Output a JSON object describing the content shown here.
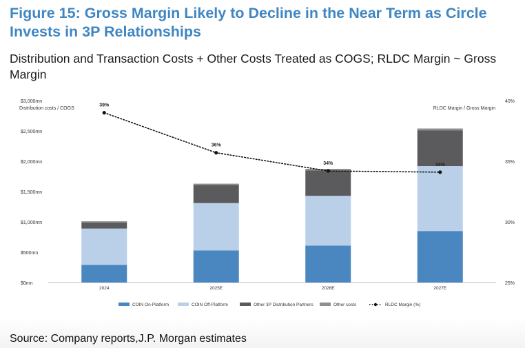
{
  "figure_title": "Figure 15: Gross Margin Likely to Decline in the Near Term as Circle Invests in 3P Relationships",
  "subtitle": "Distribution and Transaction Costs + Other Costs Treated as COGS; RLDC Margin ~ Gross Margin",
  "source": "Source: Company reports,J.P. Morgan estimates",
  "colors": {
    "coin_on": "#4a86c0",
    "coin_off": "#b9d0e8",
    "other_3p": "#5b5b5e",
    "other_costs": "#8f8f8f",
    "line": "#111111"
  },
  "chart_data": {
    "type": "bar",
    "stacked": true,
    "categories": [
      "2024",
      "2025E",
      "2026E",
      "2027E"
    ],
    "series": [
      {
        "name": "COIN On-Platform",
        "values": [
          290,
          530,
          610,
          850
        ]
      },
      {
        "name": "COIN Off-Platform",
        "values": [
          600,
          780,
          820,
          1070
        ]
      },
      {
        "name": "Other 3P Distribution Partners",
        "values": [
          100,
          300,
          420,
          590
        ]
      },
      {
        "name": "Other costs",
        "values": [
          20,
          20,
          25,
          30
        ]
      }
    ],
    "line_series": {
      "name": "RLDC Margin (%)",
      "values": [
        39.0,
        35.7,
        34.2,
        34.1
      ],
      "labels": [
        "39%",
        "36%",
        "34%",
        "34%"
      ]
    },
    "y_left": {
      "label": "Distribution costs / COGS",
      "min": 0,
      "max": 3000,
      "ticks": [
        0,
        500,
        1000,
        1500,
        2000,
        2500,
        3000
      ],
      "tick_labels": [
        "$0mn",
        "$500mn",
        "$1,000mn",
        "$1,500mn",
        "$2,000mn",
        "$2,500mn",
        "$3,000mn"
      ]
    },
    "y_right": {
      "label": "RLDC Margin / Gross Margin",
      "min": 25,
      "max": 40,
      "ticks": [
        25,
        30,
        35,
        40
      ],
      "tick_labels": [
        "25%",
        "30%",
        "35%",
        "40%"
      ]
    },
    "legend": [
      {
        "label": "COIN On-Platform",
        "kind": "bar"
      },
      {
        "label": "COIN Off-Platform",
        "kind": "bar"
      },
      {
        "label": "Other 3P Distribution Partners",
        "kind": "bar"
      },
      {
        "label": "Other costs",
        "kind": "bar"
      },
      {
        "label": "RLDC Margin (%)",
        "kind": "line"
      }
    ],
    "legend_position": "bottom",
    "grid": false
  }
}
